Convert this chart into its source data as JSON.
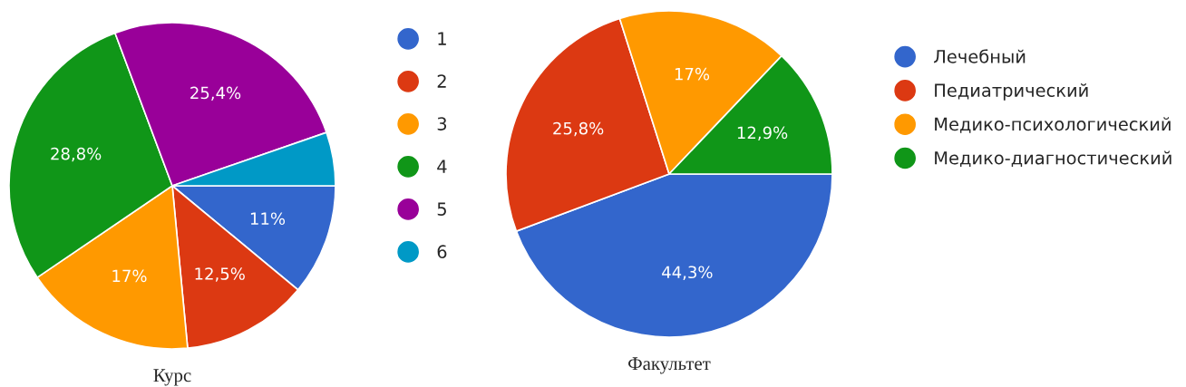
{
  "chart_data": [
    {
      "type": "pie",
      "title": "Курс",
      "categories": [
        "1",
        "2",
        "3",
        "4",
        "5",
        "6"
      ],
      "values": [
        11,
        12.5,
        17,
        28.8,
        25.4,
        5.3
      ],
      "colors": [
        "#3366cc",
        "#dc3912",
        "#ff9900",
        "#109618",
        "#990099",
        "#0099c6"
      ],
      "value_labels": [
        "11%",
        "12,5%",
        "17%",
        "28,8%",
        "25,4%",
        null
      ],
      "legend": "right"
    },
    {
      "type": "pie",
      "title": "Факультет",
      "categories": [
        "Лечебный",
        "Педиатрический",
        "Медико-психологический",
        "Медико-диагностический"
      ],
      "values": [
        44.3,
        25.8,
        17,
        12.9
      ],
      "colors": [
        "#3366cc",
        "#dc3912",
        "#ff9900",
        "#109618"
      ],
      "value_labels": [
        "44,3%",
        "25,8%",
        "17%",
        "12,9%"
      ],
      "legend": "right"
    }
  ]
}
